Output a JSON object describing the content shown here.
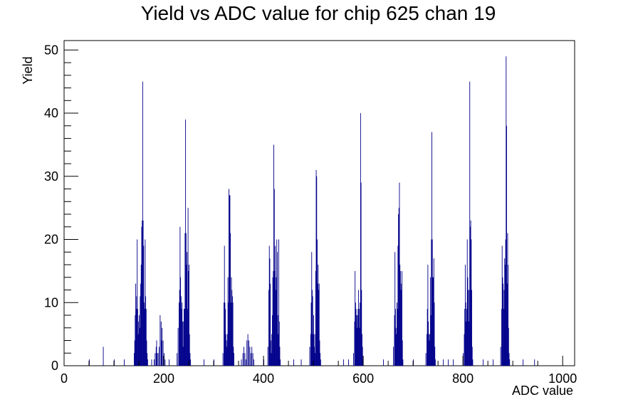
{
  "chart_data": {
    "type": "histogram",
    "title": "Yield vs ADC value for chip 625 chan 19",
    "xlabel": "ADC value",
    "ylabel": "Yield",
    "xlim": [
      0,
      1024
    ],
    "ylim": [
      0,
      51.5
    ],
    "x_ticks": [
      0,
      200,
      400,
      600,
      800,
      1000
    ],
    "y_ticks": [
      0,
      10,
      20,
      30,
      40,
      50
    ],
    "bin_width": 1,
    "line_color": "#00008b",
    "grid": false,
    "legend": "none",
    "bins": [
      [
        50,
        1
      ],
      [
        78,
        3
      ],
      [
        100,
        1
      ],
      [
        120,
        1
      ],
      [
        140,
        2
      ],
      [
        141,
        4
      ],
      [
        142,
        8
      ],
      [
        143,
        13
      ],
      [
        144,
        9
      ],
      [
        145,
        11
      ],
      [
        146,
        20
      ],
      [
        147,
        9
      ],
      [
        148,
        5
      ],
      [
        149,
        7
      ],
      [
        150,
        8
      ],
      [
        151,
        6
      ],
      [
        152,
        11
      ],
      [
        153,
        13
      ],
      [
        154,
        16
      ],
      [
        155,
        22
      ],
      [
        156,
        23
      ],
      [
        157,
        45
      ],
      [
        158,
        23
      ],
      [
        159,
        19
      ],
      [
        160,
        10
      ],
      [
        161,
        9
      ],
      [
        162,
        20
      ],
      [
        163,
        11
      ],
      [
        164,
        9
      ],
      [
        165,
        4
      ],
      [
        166,
        2
      ],
      [
        167,
        1
      ],
      [
        175,
        1
      ],
      [
        180,
        1
      ],
      [
        182,
        2
      ],
      [
        184,
        3
      ],
      [
        185,
        4
      ],
      [
        186,
        2
      ],
      [
        188,
        2
      ],
      [
        190,
        3
      ],
      [
        192,
        8
      ],
      [
        194,
        7
      ],
      [
        195,
        4
      ],
      [
        196,
        6
      ],
      [
        198,
        4
      ],
      [
        200,
        2
      ],
      [
        202,
        1
      ],
      [
        210,
        1
      ],
      [
        226,
        2
      ],
      [
        228,
        6
      ],
      [
        230,
        10
      ],
      [
        231,
        12
      ],
      [
        232,
        22
      ],
      [
        233,
        14
      ],
      [
        234,
        11
      ],
      [
        235,
        9
      ],
      [
        236,
        10
      ],
      [
        237,
        7
      ],
      [
        238,
        3
      ],
      [
        239,
        7
      ],
      [
        240,
        9
      ],
      [
        241,
        9
      ],
      [
        242,
        21
      ],
      [
        243,
        39
      ],
      [
        244,
        21
      ],
      [
        245,
        16
      ],
      [
        246,
        18
      ],
      [
        247,
        9
      ],
      [
        248,
        25
      ],
      [
        249,
        15
      ],
      [
        250,
        16
      ],
      [
        251,
        5
      ],
      [
        252,
        2
      ],
      [
        253,
        1
      ],
      [
        280,
        1
      ],
      [
        300,
        1
      ],
      [
        318,
        2
      ],
      [
        320,
        10
      ],
      [
        321,
        19
      ],
      [
        322,
        10
      ],
      [
        323,
        9
      ],
      [
        324,
        5
      ],
      [
        325,
        4
      ],
      [
        326,
        3
      ],
      [
        327,
        5
      ],
      [
        328,
        14
      ],
      [
        329,
        10
      ],
      [
        330,
        28
      ],
      [
        331,
        27
      ],
      [
        332,
        27
      ],
      [
        333,
        21
      ],
      [
        334,
        10
      ],
      [
        335,
        14
      ],
      [
        336,
        12
      ],
      [
        337,
        11
      ],
      [
        338,
        10
      ],
      [
        339,
        3
      ],
      [
        340,
        2
      ],
      [
        355,
        1
      ],
      [
        358,
        2
      ],
      [
        360,
        3
      ],
      [
        362,
        2
      ],
      [
        364,
        1
      ],
      [
        366,
        4
      ],
      [
        368,
        5
      ],
      [
        370,
        4
      ],
      [
        372,
        3
      ],
      [
        374,
        2
      ],
      [
        376,
        3
      ],
      [
        378,
        2
      ],
      [
        380,
        1
      ],
      [
        400,
        1
      ],
      [
        408,
        3
      ],
      [
        410,
        12
      ],
      [
        411,
        19
      ],
      [
        412,
        17
      ],
      [
        413,
        13
      ],
      [
        414,
        4
      ],
      [
        415,
        2
      ],
      [
        416,
        5
      ],
      [
        417,
        8
      ],
      [
        418,
        14
      ],
      [
        419,
        15
      ],
      [
        420,
        35
      ],
      [
        421,
        28
      ],
      [
        422,
        15
      ],
      [
        423,
        19
      ],
      [
        424,
        12
      ],
      [
        425,
        14
      ],
      [
        426,
        20
      ],
      [
        427,
        18
      ],
      [
        428,
        8
      ],
      [
        429,
        5
      ],
      [
        430,
        20
      ],
      [
        431,
        7
      ],
      [
        432,
        3
      ],
      [
        433,
        1
      ],
      [
        460,
        1
      ],
      [
        475,
        1
      ],
      [
        492,
        3
      ],
      [
        494,
        5
      ],
      [
        495,
        10
      ],
      [
        496,
        18
      ],
      [
        497,
        12
      ],
      [
        498,
        11
      ],
      [
        499,
        5
      ],
      [
        500,
        8
      ],
      [
        501,
        3
      ],
      [
        502,
        5
      ],
      [
        503,
        2
      ],
      [
        504,
        15
      ],
      [
        505,
        31
      ],
      [
        506,
        30
      ],
      [
        507,
        20
      ],
      [
        508,
        13
      ],
      [
        509,
        16
      ],
      [
        510,
        12
      ],
      [
        511,
        13
      ],
      [
        512,
        4
      ],
      [
        513,
        2
      ],
      [
        514,
        1
      ],
      [
        560,
        1
      ],
      [
        570,
        1
      ],
      [
        580,
        2
      ],
      [
        582,
        7
      ],
      [
        583,
        15
      ],
      [
        584,
        10
      ],
      [
        585,
        9
      ],
      [
        586,
        8
      ],
      [
        587,
        6
      ],
      [
        588,
        8
      ],
      [
        589,
        9
      ],
      [
        590,
        12
      ],
      [
        591,
        9
      ],
      [
        592,
        6
      ],
      [
        593,
        10
      ],
      [
        594,
        40
      ],
      [
        595,
        29
      ],
      [
        596,
        12
      ],
      [
        597,
        5
      ],
      [
        598,
        3
      ],
      [
        599,
        1
      ],
      [
        640,
        1
      ],
      [
        660,
        3
      ],
      [
        662,
        8
      ],
      [
        663,
        18
      ],
      [
        664,
        9
      ],
      [
        665,
        6
      ],
      [
        666,
        5
      ],
      [
        667,
        10
      ],
      [
        668,
        9
      ],
      [
        669,
        19
      ],
      [
        670,
        24
      ],
      [
        671,
        25
      ],
      [
        672,
        29
      ],
      [
        673,
        16
      ],
      [
        674,
        15
      ],
      [
        675,
        12
      ],
      [
        676,
        13
      ],
      [
        677,
        15
      ],
      [
        678,
        4
      ],
      [
        679,
        1
      ],
      [
        700,
        1
      ],
      [
        725,
        2
      ],
      [
        727,
        5
      ],
      [
        728,
        9
      ],
      [
        729,
        16
      ],
      [
        730,
        7
      ],
      [
        731,
        5
      ],
      [
        732,
        4
      ],
      [
        733,
        5
      ],
      [
        734,
        14
      ],
      [
        735,
        8
      ],
      [
        736,
        20
      ],
      [
        737,
        37
      ],
      [
        738,
        20
      ],
      [
        739,
        14
      ],
      [
        740,
        14
      ],
      [
        741,
        17
      ],
      [
        742,
        10
      ],
      [
        743,
        3
      ],
      [
        744,
        1
      ],
      [
        760,
        1
      ],
      [
        770,
        1
      ],
      [
        780,
        1
      ],
      [
        800,
        2
      ],
      [
        802,
        5
      ],
      [
        803,
        9
      ],
      [
        804,
        16
      ],
      [
        805,
        10
      ],
      [
        806,
        7
      ],
      [
        807,
        9
      ],
      [
        808,
        20
      ],
      [
        809,
        14
      ],
      [
        810,
        12
      ],
      [
        811,
        7
      ],
      [
        812,
        12
      ],
      [
        813,
        45
      ],
      [
        814,
        22
      ],
      [
        815,
        23
      ],
      [
        816,
        20
      ],
      [
        817,
        12
      ],
      [
        818,
        3
      ],
      [
        819,
        1
      ],
      [
        840,
        1
      ],
      [
        860,
        1
      ],
      [
        875,
        3
      ],
      [
        877,
        9
      ],
      [
        878,
        19
      ],
      [
        879,
        14
      ],
      [
        880,
        13
      ],
      [
        881,
        9
      ],
      [
        882,
        12
      ],
      [
        883,
        17
      ],
      [
        884,
        16
      ],
      [
        885,
        20
      ],
      [
        886,
        49
      ],
      [
        887,
        38
      ],
      [
        888,
        13
      ],
      [
        889,
        21
      ],
      [
        890,
        16
      ],
      [
        891,
        6
      ],
      [
        892,
        2
      ],
      [
        893,
        1
      ],
      [
        920,
        1
      ],
      [
        943,
        1
      ]
    ]
  }
}
